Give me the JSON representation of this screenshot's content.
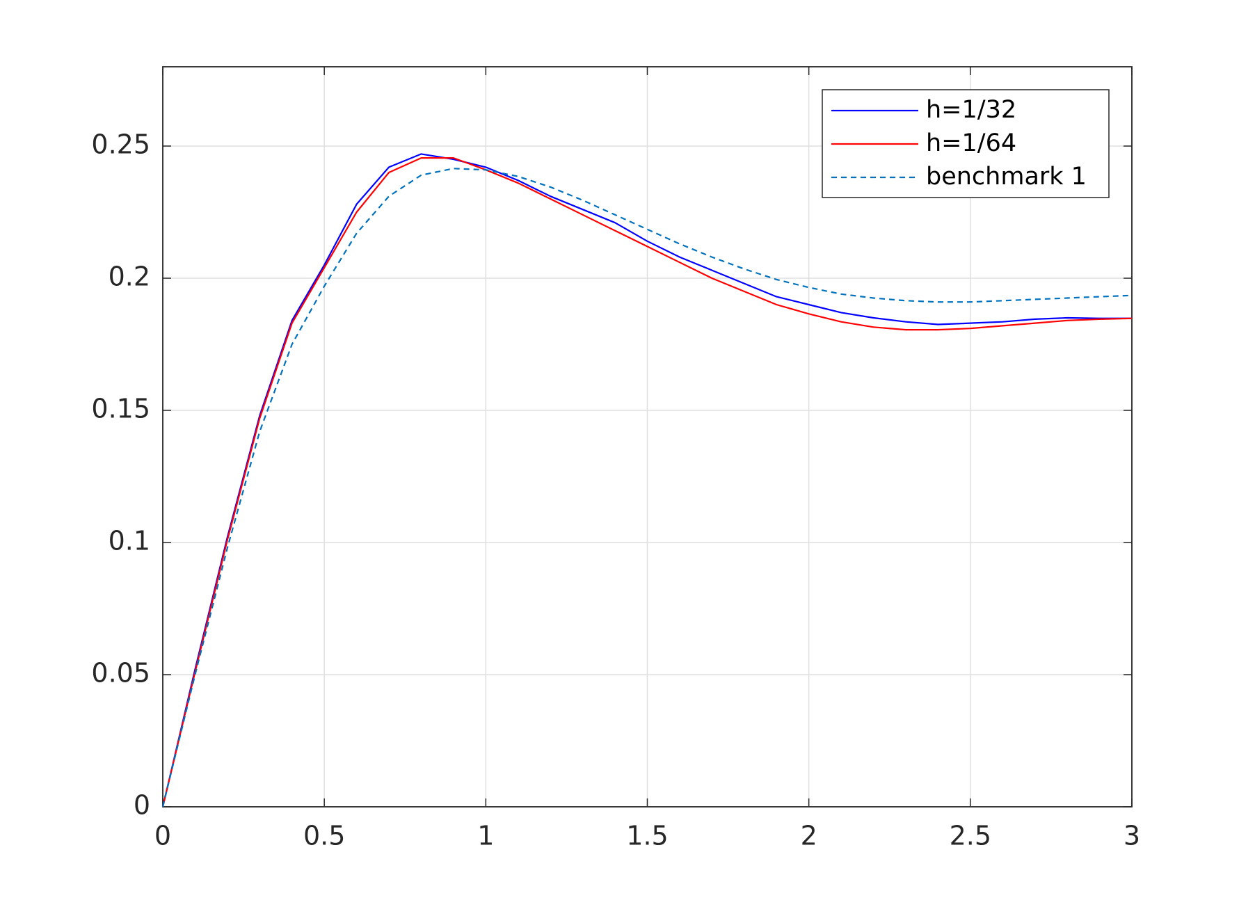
{
  "chart_data": {
    "type": "line",
    "x": [
      0,
      0.1,
      0.2,
      0.3,
      0.4,
      0.5,
      0.6,
      0.7,
      0.8,
      0.9,
      1.0,
      1.1,
      1.2,
      1.3,
      1.4,
      1.5,
      1.6,
      1.7,
      1.8,
      1.9,
      2.0,
      2.1,
      2.2,
      2.3,
      2.4,
      2.5,
      2.6,
      2.7,
      2.8,
      2.9,
      3.0
    ],
    "series": [
      {
        "name": "h=1/32",
        "color": "#0000ff",
        "line_style": "solid",
        "values": [
          0,
          0.052,
          0.102,
          0.148,
          0.184,
          0.205,
          0.228,
          0.242,
          0.247,
          0.245,
          0.242,
          0.237,
          0.231,
          0.226,
          0.221,
          0.214,
          0.208,
          0.203,
          0.198,
          0.193,
          0.19,
          0.187,
          0.185,
          0.1835,
          0.1825,
          0.183,
          0.1835,
          0.1845,
          0.185,
          0.1848,
          0.1848
        ]
      },
      {
        "name": "h=1/64",
        "color": "#ff0000",
        "line_style": "solid",
        "values": [
          0,
          0.051,
          0.101,
          0.147,
          0.183,
          0.204,
          0.225,
          0.24,
          0.2455,
          0.2455,
          0.241,
          0.236,
          0.23,
          0.224,
          0.218,
          0.212,
          0.206,
          0.2,
          0.195,
          0.19,
          0.1865,
          0.1835,
          0.1815,
          0.1805,
          0.1805,
          0.181,
          0.182,
          0.183,
          0.184,
          0.1845,
          0.1848
        ]
      },
      {
        "name": "benchmark 1",
        "color": "#0072bd",
        "line_style": "dashed",
        "values": [
          0,
          0.05,
          0.098,
          0.142,
          0.175,
          0.197,
          0.217,
          0.231,
          0.239,
          0.2415,
          0.241,
          0.2385,
          0.2345,
          0.2295,
          0.224,
          0.2185,
          0.213,
          0.208,
          0.2035,
          0.1995,
          0.1965,
          0.194,
          0.1925,
          0.1915,
          0.191,
          0.191,
          0.1915,
          0.192,
          0.1925,
          0.193,
          0.1935
        ]
      }
    ],
    "xlim": [
      0,
      3
    ],
    "ylim": [
      0,
      0.28
    ],
    "xticks": [
      0,
      0.5,
      1,
      1.5,
      2,
      2.5,
      3
    ],
    "yticks": [
      0,
      0.05,
      0.1,
      0.15,
      0.2,
      0.25
    ],
    "grid": true,
    "legend": "northeast"
  }
}
